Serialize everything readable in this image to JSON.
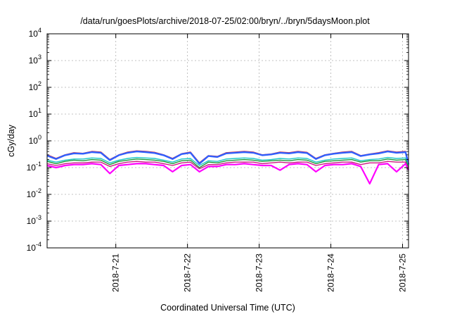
{
  "chart_data": {
    "type": "line",
    "title": "/data/run/goesPlots/archive/2018-07-25/02:00/bryn/../bryn/5daysMoon.plot",
    "xlabel": "Coordinated Universal Time (UTC)",
    "ylabel": "cGy/day",
    "yscale": "log",
    "ylim": [
      0.0001,
      10000
    ],
    "xlim": [
      "2018-07-20T01:00",
      "2018-07-25T02:00"
    ],
    "grid": true,
    "y_ticks": [
      {
        "base": "10",
        "exp": "-4",
        "value": 0.0001
      },
      {
        "base": "10",
        "exp": "-3",
        "value": 0.001
      },
      {
        "base": "10",
        "exp": "-2",
        "value": 0.01
      },
      {
        "base": "10",
        "exp": "-1",
        "value": 0.1
      },
      {
        "base": "10",
        "exp": "0",
        "value": 1
      },
      {
        "base": "10",
        "exp": "1",
        "value": 10
      },
      {
        "base": "10",
        "exp": "2",
        "value": 100
      },
      {
        "base": "10",
        "exp": "3",
        "value": 1000
      },
      {
        "base": "10",
        "exp": "4",
        "value": 10000
      }
    ],
    "x_ticks": [
      {
        "label": "2018-7-21",
        "t": "2018-07-21T00:00"
      },
      {
        "label": "2018-7-22",
        "t": "2018-07-22T00:00"
      },
      {
        "label": "2018-7-23",
        "t": "2018-07-23T00:00"
      },
      {
        "label": "2018-7-24",
        "t": "2018-07-24T00:00"
      },
      {
        "label": "2018-7-25",
        "t": "2018-07-25T00:00"
      }
    ],
    "x": [
      "2018-07-20T01:00",
      "2018-07-20T04:00",
      "2018-07-20T07:00",
      "2018-07-20T10:00",
      "2018-07-20T13:00",
      "2018-07-20T16:00",
      "2018-07-20T19:00",
      "2018-07-20T22:00",
      "2018-07-21T01:00",
      "2018-07-21T04:00",
      "2018-07-21T07:00",
      "2018-07-21T10:00",
      "2018-07-21T13:00",
      "2018-07-21T16:00",
      "2018-07-21T19:00",
      "2018-07-21T22:00",
      "2018-07-22T01:00",
      "2018-07-22T04:00",
      "2018-07-22T07:00",
      "2018-07-22T10:00",
      "2018-07-22T13:00",
      "2018-07-22T16:00",
      "2018-07-22T19:00",
      "2018-07-22T22:00",
      "2018-07-23T01:00",
      "2018-07-23T04:00",
      "2018-07-23T07:00",
      "2018-07-23T10:00",
      "2018-07-23T13:00",
      "2018-07-23T16:00",
      "2018-07-23T19:00",
      "2018-07-23T22:00",
      "2018-07-24T01:00",
      "2018-07-24T04:00",
      "2018-07-24T07:00",
      "2018-07-24T10:00",
      "2018-07-24T13:00",
      "2018-07-24T16:00",
      "2018-07-24T19:00",
      "2018-07-24T22:00",
      "2018-07-25T01:00",
      "2018-07-25T02:00"
    ],
    "series": [
      {
        "color": "#e6191e",
        "width": 1.6,
        "values": [
          0.3,
          0.22,
          0.3,
          0.36,
          0.34,
          0.4,
          0.38,
          0.2,
          0.3,
          0.38,
          0.42,
          0.4,
          0.37,
          0.3,
          0.22,
          0.33,
          0.38,
          0.15,
          0.28,
          0.26,
          0.36,
          0.38,
          0.4,
          0.38,
          0.3,
          0.32,
          0.38,
          0.36,
          0.4,
          0.37,
          0.22,
          0.3,
          0.34,
          0.38,
          0.4,
          0.28,
          0.32,
          0.36,
          0.42,
          0.38,
          0.4,
          0.14
        ]
      },
      {
        "color": "#3060ff",
        "width": 2.4,
        "values": [
          0.28,
          0.21,
          0.29,
          0.34,
          0.33,
          0.38,
          0.36,
          0.19,
          0.29,
          0.36,
          0.4,
          0.38,
          0.35,
          0.29,
          0.21,
          0.32,
          0.36,
          0.14,
          0.27,
          0.25,
          0.34,
          0.36,
          0.38,
          0.36,
          0.29,
          0.31,
          0.36,
          0.34,
          0.38,
          0.35,
          0.21,
          0.29,
          0.33,
          0.36,
          0.38,
          0.27,
          0.31,
          0.34,
          0.4,
          0.36,
          0.38,
          0.13
        ]
      },
      {
        "color": "#1ec8c8",
        "width": 1.4,
        "values": [
          0.19,
          0.16,
          0.19,
          0.21,
          0.21,
          0.23,
          0.22,
          0.15,
          0.19,
          0.22,
          0.24,
          0.23,
          0.22,
          0.19,
          0.16,
          0.21,
          0.22,
          0.12,
          0.18,
          0.17,
          0.21,
          0.22,
          0.23,
          0.22,
          0.19,
          0.2,
          0.22,
          0.21,
          0.23,
          0.22,
          0.16,
          0.19,
          0.21,
          0.22,
          0.23,
          0.18,
          0.2,
          0.21,
          0.24,
          0.22,
          0.23,
          0.11
        ]
      },
      {
        "color": "#1a9a3a",
        "width": 1.4,
        "values": [
          0.17,
          0.14,
          0.17,
          0.19,
          0.18,
          0.2,
          0.19,
          0.13,
          0.17,
          0.19,
          0.21,
          0.2,
          0.19,
          0.17,
          0.14,
          0.18,
          0.19,
          0.1,
          0.16,
          0.15,
          0.18,
          0.19,
          0.2,
          0.19,
          0.17,
          0.18,
          0.19,
          0.18,
          0.2,
          0.19,
          0.14,
          0.17,
          0.18,
          0.19,
          0.2,
          0.16,
          0.18,
          0.18,
          0.21,
          0.19,
          0.2,
          0.1
        ]
      },
      {
        "color": "#cc1a80",
        "width": 1.4,
        "values": [
          0.14,
          0.12,
          0.14,
          0.15,
          0.15,
          0.16,
          0.16,
          0.11,
          0.14,
          0.16,
          0.17,
          0.16,
          0.16,
          0.14,
          0.12,
          0.15,
          0.16,
          0.09,
          0.13,
          0.13,
          0.15,
          0.16,
          0.16,
          0.16,
          0.14,
          0.15,
          0.16,
          0.15,
          0.16,
          0.16,
          0.12,
          0.14,
          0.15,
          0.16,
          0.16,
          0.13,
          0.15,
          0.15,
          0.17,
          0.16,
          0.16,
          0.09
        ]
      },
      {
        "color": "#ff00ff",
        "width": 2.2,
        "values": [
          0.12,
          0.1,
          0.12,
          0.13,
          0.13,
          0.14,
          0.13,
          0.06,
          0.12,
          0.13,
          0.14,
          0.14,
          0.13,
          0.12,
          0.07,
          0.12,
          0.13,
          0.07,
          0.11,
          0.11,
          0.13,
          0.13,
          0.14,
          0.13,
          0.12,
          0.12,
          0.08,
          0.13,
          0.14,
          0.13,
          0.07,
          0.12,
          0.13,
          0.13,
          0.14,
          0.11,
          0.025,
          0.13,
          0.14,
          0.07,
          0.14,
          0.08
        ]
      }
    ]
  }
}
